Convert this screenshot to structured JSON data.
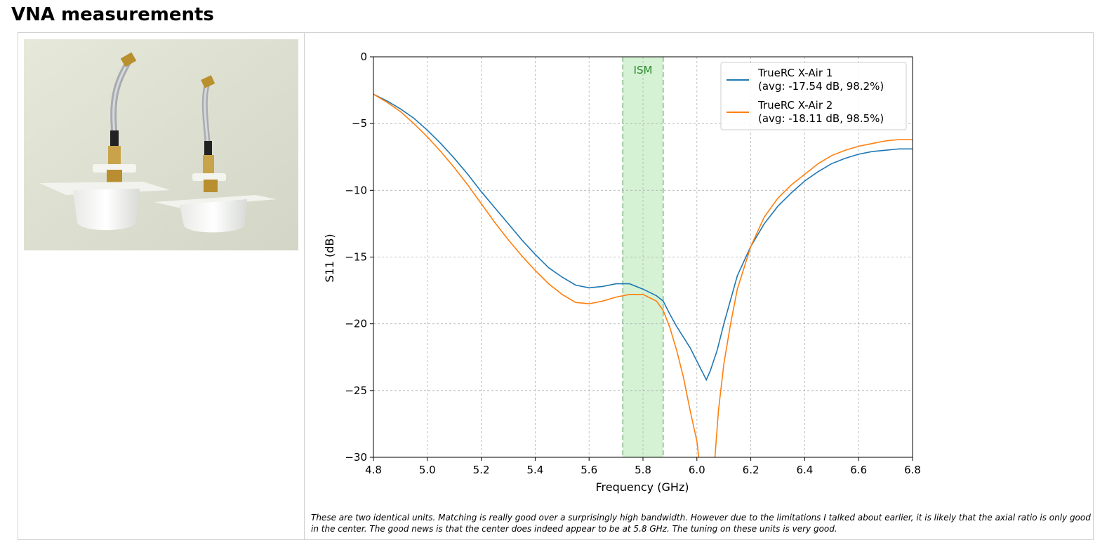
{
  "page": {
    "heading": "VNA measurements",
    "caption": "These are two identical units. Matching is really good over a surprisingly high bandwidth. However due to the limitations I talked about earlier, it is likely that the axial ratio is only good in the center. The good news is that the center does indeed appear to be at 5.8 GHz. The tuning on these units is very good."
  },
  "chart_data": {
    "type": "line",
    "xlabel": "Frequency (GHz)",
    "ylabel": "S11 (dB)",
    "xlim": [
      4.8,
      6.8
    ],
    "ylim": [
      -30,
      0
    ],
    "xticks": [
      "4.8",
      "5.0",
      "5.2",
      "5.4",
      "5.6",
      "5.8",
      "6.0",
      "6.2",
      "6.4",
      "6.6",
      "6.8"
    ],
    "yticks": [
      "0",
      "−5",
      "−10",
      "−15",
      "−20",
      "−25",
      "−30"
    ],
    "grid": true,
    "legend_position": "upper right",
    "band": {
      "label": "ISM",
      "from": 5.725,
      "to": 5.875,
      "color": "#d5f2d5",
      "edge_color": "#6aa86a",
      "label_color": "#2a8a2a"
    },
    "series": [
      {
        "name": "TrueRC X-Air 1",
        "name_line2": "(avg: -17.54 dB, 98.2%)",
        "color": "#1f77b4",
        "x": [
          4.8,
          4.85,
          4.9,
          4.95,
          5.0,
          5.05,
          5.1,
          5.15,
          5.2,
          5.25,
          5.3,
          5.35,
          5.4,
          5.45,
          5.5,
          5.55,
          5.6,
          5.65,
          5.7,
          5.75,
          5.8,
          5.85,
          5.875,
          5.9,
          5.925,
          5.95,
          5.975,
          6.0,
          6.02,
          6.035,
          6.05,
          6.075,
          6.1,
          6.125,
          6.15,
          6.2,
          6.25,
          6.3,
          6.35,
          6.4,
          6.45,
          6.5,
          6.55,
          6.6,
          6.65,
          6.7,
          6.75,
          6.8
        ],
        "y": [
          -2.8,
          -3.3,
          -3.9,
          -4.6,
          -5.5,
          -6.5,
          -7.6,
          -8.8,
          -10.1,
          -11.3,
          -12.5,
          -13.7,
          -14.8,
          -15.8,
          -16.5,
          -17.1,
          -17.3,
          -17.2,
          -17.0,
          -17.0,
          -17.4,
          -17.9,
          -18.3,
          -19.3,
          -20.2,
          -21.0,
          -21.8,
          -22.8,
          -23.6,
          -24.2,
          -23.5,
          -22.0,
          -20.0,
          -18.2,
          -16.4,
          -14.2,
          -12.5,
          -11.2,
          -10.2,
          -9.3,
          -8.6,
          -8.0,
          -7.6,
          -7.3,
          -7.1,
          -7.0,
          -6.9,
          -6.9
        ]
      },
      {
        "name": "TrueRC X-Air 2",
        "name_line2": "(avg: -18.11 dB, 98.5%)",
        "color": "#ff7f0e",
        "x": [
          4.8,
          4.85,
          4.9,
          4.95,
          5.0,
          5.05,
          5.1,
          5.15,
          5.2,
          5.25,
          5.3,
          5.35,
          5.4,
          5.45,
          5.5,
          5.55,
          5.6,
          5.65,
          5.7,
          5.75,
          5.8,
          5.85,
          5.875,
          5.9,
          5.925,
          5.95,
          5.975,
          6.0,
          6.01,
          6.065,
          6.08,
          6.1,
          6.125,
          6.15,
          6.2,
          6.25,
          6.3,
          6.35,
          6.4,
          6.45,
          6.5,
          6.55,
          6.6,
          6.65,
          6.7,
          6.75,
          6.8
        ],
        "y": [
          -2.8,
          -3.4,
          -4.1,
          -5.0,
          -6.0,
          -7.1,
          -8.3,
          -9.6,
          -11.0,
          -12.4,
          -13.7,
          -14.9,
          -16.0,
          -17.0,
          -17.8,
          -18.4,
          -18.5,
          -18.3,
          -18.0,
          -17.8,
          -17.8,
          -18.3,
          -19.0,
          -20.3,
          -22.0,
          -24.0,
          -26.5,
          -28.8,
          -30.5,
          -30.5,
          -26.5,
          -23.0,
          -20.0,
          -17.4,
          -14.2,
          -12.0,
          -10.6,
          -9.6,
          -8.8,
          -8.0,
          -7.4,
          -7.0,
          -6.7,
          -6.5,
          -6.3,
          -6.2,
          -6.2
        ]
      }
    ]
  }
}
